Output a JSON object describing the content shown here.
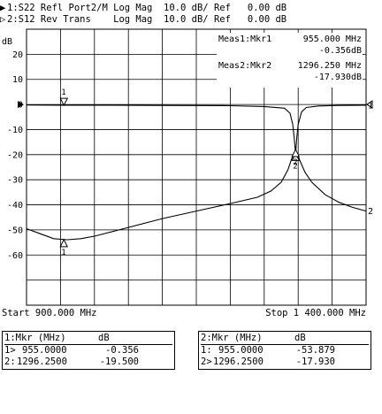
{
  "header": {
    "line1": {
      "marker": "▶",
      "trace": "1:S22 Refl Port2/M",
      "format": "Log Mag",
      "scale": "10.0 dB/ Ref",
      "ref": "0.00 dB"
    },
    "line2": {
      "marker": "▷",
      "trace": "2:S12 Rev Trans",
      "format": "Log Mag",
      "scale": "10.0 dB/ Ref",
      "ref": "0.00 dB"
    }
  },
  "readouts": {
    "meas1": {
      "label": "Meas1:Mkr1",
      "freq": "955.000 MHz",
      "value": "-0.356dB"
    },
    "meas2": {
      "label": "Meas2:Mkr2",
      "freq": "1296.250 MHz",
      "value": "-17.930dB"
    }
  },
  "footer": {
    "start": "Start 900.000 MHz",
    "stop": "Stop 1 400.000 MHz"
  },
  "tables": {
    "left": {
      "title": "1:Mkr (MHz)",
      "unit": "dB",
      "rows": [
        {
          "mk": "1>",
          "freq": "955.0000",
          "val": "-0.356"
        },
        {
          "mk": "2:",
          "freq": "1296.2500",
          "val": "-19.500"
        }
      ]
    },
    "right": {
      "title": "2:Mkr (MHz)",
      "unit": "dB",
      "rows": [
        {
          "mk": "1:",
          "freq": "955.0000",
          "val": "-53.879"
        },
        {
          "mk": "2>",
          "freq": "1296.2500",
          "val": "-17.930"
        }
      ]
    }
  },
  "chart_data": {
    "type": "line",
    "ylabel": "dB",
    "xlim": [
      900,
      1400
    ],
    "ylim": [
      -80,
      30
    ],
    "y_ticks": [
      "20",
      "10",
      "0",
      "-10",
      "-20",
      "-30",
      "-40",
      "-50",
      "-60"
    ],
    "y_tick_values": [
      20,
      10,
      0,
      -10,
      -20,
      -30,
      -40,
      -50,
      -60
    ],
    "grid": true,
    "series": [
      {
        "trace_no": "1",
        "x": [
          900,
          950,
          1000,
          1100,
          1200,
          1250,
          1280,
          1288,
          1292,
          1294,
          1296.25,
          1298,
          1300,
          1305,
          1312,
          1330,
          1360,
          1400
        ],
        "y": [
          -0.2,
          -0.3,
          -0.3,
          -0.4,
          -0.5,
          -0.8,
          -1.5,
          -3.5,
          -8,
          -13,
          -19.5,
          -13,
          -8,
          -3,
          -1.2,
          -0.6,
          -0.4,
          -0.3
        ],
        "markers": [
          {
            "id": "1",
            "x": 955,
            "y": -0.356
          },
          {
            "id": "2",
            "x": 1296.25,
            "y": -19.5
          }
        ]
      },
      {
        "trace_no": "2",
        "x": [
          900,
          920,
          940,
          960,
          980,
          1000,
          1050,
          1100,
          1150,
          1200,
          1240,
          1260,
          1275,
          1285,
          1290,
          1296.25,
          1302,
          1310,
          1320,
          1340,
          1360,
          1380,
          1400
        ],
        "y": [
          -49.5,
          -51.5,
          -53.5,
          -53.9,
          -53.5,
          -52.5,
          -49,
          -45.5,
          -42.5,
          -39.5,
          -37,
          -34.5,
          -31,
          -26,
          -22,
          -17.93,
          -22,
          -27,
          -31,
          -36,
          -39,
          -41,
          -42.5
        ],
        "markers": [
          {
            "id": "1",
            "x": 955,
            "y": -53.879
          },
          {
            "id": "2",
            "x": 1296.25,
            "y": -17.93
          }
        ]
      }
    ]
  }
}
